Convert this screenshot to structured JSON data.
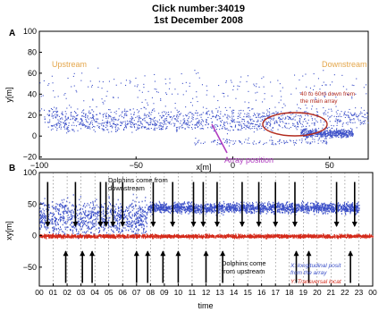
{
  "title": {
    "line1": "Click number:34019",
    "line2": "1st December 2008"
  },
  "colors": {
    "series_x": "#3b4fc8",
    "series_y": "#d42a1a",
    "annotation_dark": "#b22b1e",
    "annotation_purple": "#b03cc0",
    "region_label": "#e4a64a",
    "frame": "#000000"
  },
  "chart_data": [
    {
      "panel": "A",
      "type": "scatter",
      "xlabel": "x[m]",
      "ylabel": "y[m]",
      "xlim": [
        -100,
        70
      ],
      "ylim": [
        -22,
        100
      ],
      "x_ticks": [
        -100,
        -50,
        0,
        50
      ],
      "y_ticks": [
        -20,
        0,
        20,
        40,
        60,
        80,
        100
      ],
      "grid": false,
      "region_labels": {
        "left": "Upstream",
        "right": "Downstream"
      },
      "annotations": {
        "far_downstream": [
          "40 to 60m down from",
          "the main array"
        ],
        "array_position": "Array position"
      },
      "series": [
        {
          "color": "#3b4fc8",
          "clusters": [
            {
              "x_range": [
                -98,
                70
              ],
              "y_center": 18,
              "y_spread": 14,
              "count": 900
            },
            {
              "x_range": [
                -95,
                40
              ],
              "y_center": 10,
              "y_spread": 8,
              "count": 400
            },
            {
              "x_range": [
                35,
                62
              ],
              "y_center": 3,
              "y_spread": 6,
              "count": 500
            },
            {
              "x_range": [
                -100,
                70
              ],
              "y_center": 45,
              "y_spread": 30,
              "count": 220
            },
            {
              "x_range": [
                -20,
                50
              ],
              "y_center": -5,
              "y_spread": 5,
              "count": 120
            }
          ]
        }
      ]
    },
    {
      "panel": "B",
      "type": "scatter",
      "xlabel": "time",
      "ylabel": "xy[m]",
      "xlim": [
        0,
        24
      ],
      "ylim": [
        -80,
        100
      ],
      "y_ticks": [
        -50,
        0,
        50,
        100
      ],
      "x_tick_labels": [
        "00",
        "01",
        "02",
        "03",
        "04",
        "05",
        "06",
        "07",
        "08",
        "09",
        "10",
        "11",
        "12",
        "13",
        "14",
        "15",
        "16",
        "17",
        "18",
        "19",
        "20",
        "21",
        "22",
        "23",
        "00"
      ],
      "grid": false,
      "legend": [
        "X: longitudinal posit",
        "from the array",
        "Y: Transversal locat"
      ],
      "annotations": {
        "downstream": [
          "Dolphins come from",
          "downstream"
        ],
        "upstream": [
          "Dolphins come",
          "from upstream"
        ]
      },
      "series": [
        {
          "name": "X: longitudinal posit from the array",
          "color": "#3b4fc8",
          "bands": [
            {
              "t_range": [
                7.8,
                23
              ],
              "y_center": 45,
              "y_spread": 12
            },
            {
              "t_range": [
                0,
                7.8
              ],
              "y_center": 30,
              "y_spread": 40
            }
          ]
        },
        {
          "name": "Y: Transversal locat",
          "color": "#d42a1a",
          "bands": [
            {
              "t_range": [
                0,
                24
              ],
              "y_center": 0,
              "y_spread": 4
            }
          ]
        }
      ],
      "arrows_down": [
        0.6,
        2.6,
        4.4,
        4.8,
        5.3,
        6.0,
        8.2,
        9.6,
        11.1,
        11.8,
        12.8,
        14.6,
        15.8,
        17.0,
        18.4,
        21.4,
        22.7
      ],
      "arrows_up": [
        1.9,
        3.1,
        3.8,
        7.0,
        7.8,
        8.9,
        10.0,
        12.0,
        13.2,
        18.5,
        19.4,
        22.4
      ]
    }
  ]
}
